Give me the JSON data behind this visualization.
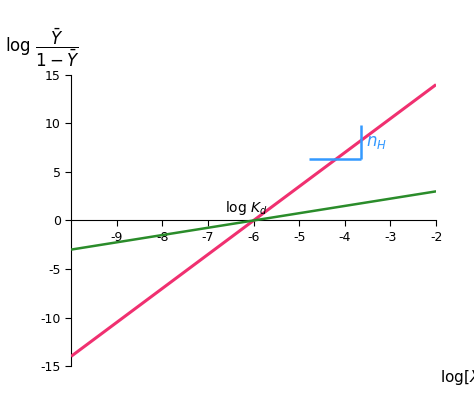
{
  "xlim": [
    -10,
    -2
  ],
  "ylim": [
    -15,
    15
  ],
  "xticks": [
    -9,
    -8,
    -7,
    -6,
    -5,
    -4,
    -3,
    -2
  ],
  "yticks": [
    -15,
    -10,
    -5,
    0,
    5,
    10,
    15
  ],
  "xlabel": "log$[X]$",
  "red_line": {
    "x_intercept": -6,
    "slope": 3.5,
    "color": "#F03070",
    "linewidth": 2.2
  },
  "green_line": {
    "x_intercept": -6,
    "slope": 0.75,
    "color": "#2A8C2A",
    "linewidth": 1.8
  },
  "logKd_label": "log $K_d$",
  "logKd_x": -6.0,
  "logKd_y": 0.35,
  "nH_label": "$n_H$",
  "nH_horiz_x1": -4.78,
  "nH_horiz_x2": -3.65,
  "nH_horiz_y": 6.3,
  "nH_vert_x": -3.65,
  "nH_vert_y1": 6.3,
  "nH_vert_y2": 9.8,
  "bracket_color": "#3399FF",
  "background_color": "#FFFFFF",
  "ylabel_text": "log $\\dfrac{\\bar{Y}}{1-\\bar{Y}}$",
  "ylabel_fontsize": 12,
  "xlabel_fontsize": 11,
  "tick_fontsize": 9
}
